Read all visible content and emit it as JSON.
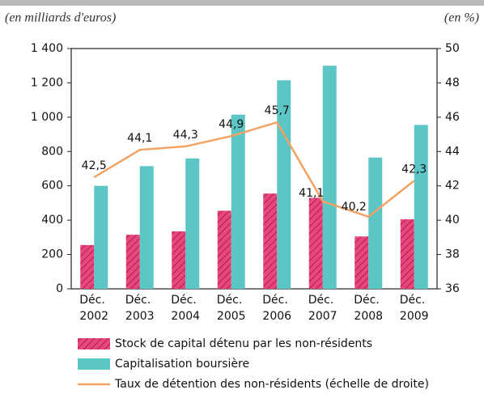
{
  "chart_data": {
    "type": "bar_line",
    "subtitle_left": "(en milliards d'euros)",
    "subtitle_right": "(en %)",
    "categories": [
      "Déc. 2002",
      "Déc. 2003",
      "Déc. 2004",
      "Déc. 2005",
      "Déc. 2006",
      "Déc. 2007",
      "Déc. 2008",
      "Déc. 2009"
    ],
    "series": [
      {
        "name": "Stock de capital détenu par les non-résidents",
        "color": "#e8467c",
        "hatched": true,
        "type": "bar",
        "values": [
          255,
          315,
          335,
          455,
          555,
          530,
          305,
          405
        ]
      },
      {
        "name": "Capitalisation boursière",
        "color": "#5cc5c5",
        "type": "bar",
        "values": [
          600,
          715,
          760,
          1015,
          1215,
          1300,
          765,
          955
        ]
      },
      {
        "name": "Taux de détention des non-résidents (échelle de droite)",
        "color": "#f2a263",
        "type": "line",
        "axis": "y2",
        "values": [
          42.5,
          44.1,
          44.3,
          44.9,
          45.7,
          41.1,
          40.2,
          42.3
        ],
        "value_labels": [
          "42,5",
          "44,1",
          "44,3",
          "44,9",
          "45,7",
          "41,1",
          "40,2",
          "42,3"
        ]
      }
    ],
    "ylim": [
      0,
      1400
    ],
    "yticks": [
      0,
      200,
      400,
      600,
      800,
      {
        "value": 1000,
        "label": "1 000"
      },
      {
        "value": 1200,
        "label": "1 200"
      },
      {
        "value": 1400,
        "label": "1 400"
      }
    ],
    "y2lim": [
      36,
      50
    ],
    "y2ticks": [
      36,
      38,
      40,
      42,
      44,
      46,
      48,
      50
    ]
  }
}
